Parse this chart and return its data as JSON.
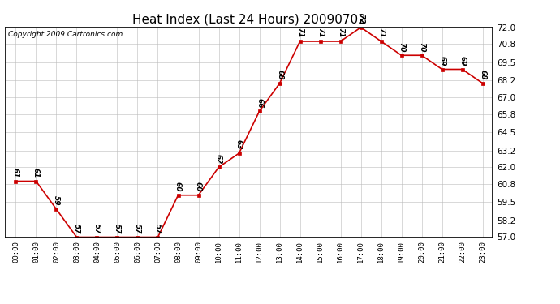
{
  "title": "Heat Index (Last 24 Hours) 20090702",
  "copyright": "Copyright 2009 Cartronics.com",
  "hours": [
    "00:00",
    "01:00",
    "02:00",
    "03:00",
    "04:00",
    "05:00",
    "06:00",
    "07:00",
    "08:00",
    "09:00",
    "10:00",
    "11:00",
    "12:00",
    "13:00",
    "14:00",
    "15:00",
    "16:00",
    "17:00",
    "18:00",
    "19:00",
    "20:00",
    "21:00",
    "22:00",
    "23:00"
  ],
  "values": [
    61,
    61,
    59,
    57,
    57,
    57,
    57,
    57,
    60,
    60,
    62,
    63,
    66,
    68,
    71,
    71,
    71,
    72,
    71,
    70,
    70,
    69,
    69,
    68
  ],
  "line_color": "#cc0000",
  "marker_color": "#cc0000",
  "background_color": "#ffffff",
  "grid_color": "#bbbbbb",
  "ylim_min": 57.0,
  "ylim_max": 72.0,
  "yticks": [
    57.0,
    58.2,
    59.5,
    60.8,
    62.0,
    63.2,
    64.5,
    65.8,
    67.0,
    68.2,
    69.5,
    70.8,
    72.0
  ],
  "title_fontsize": 11,
  "annotation_fontsize": 6.5,
  "copyright_fontsize": 6.5
}
